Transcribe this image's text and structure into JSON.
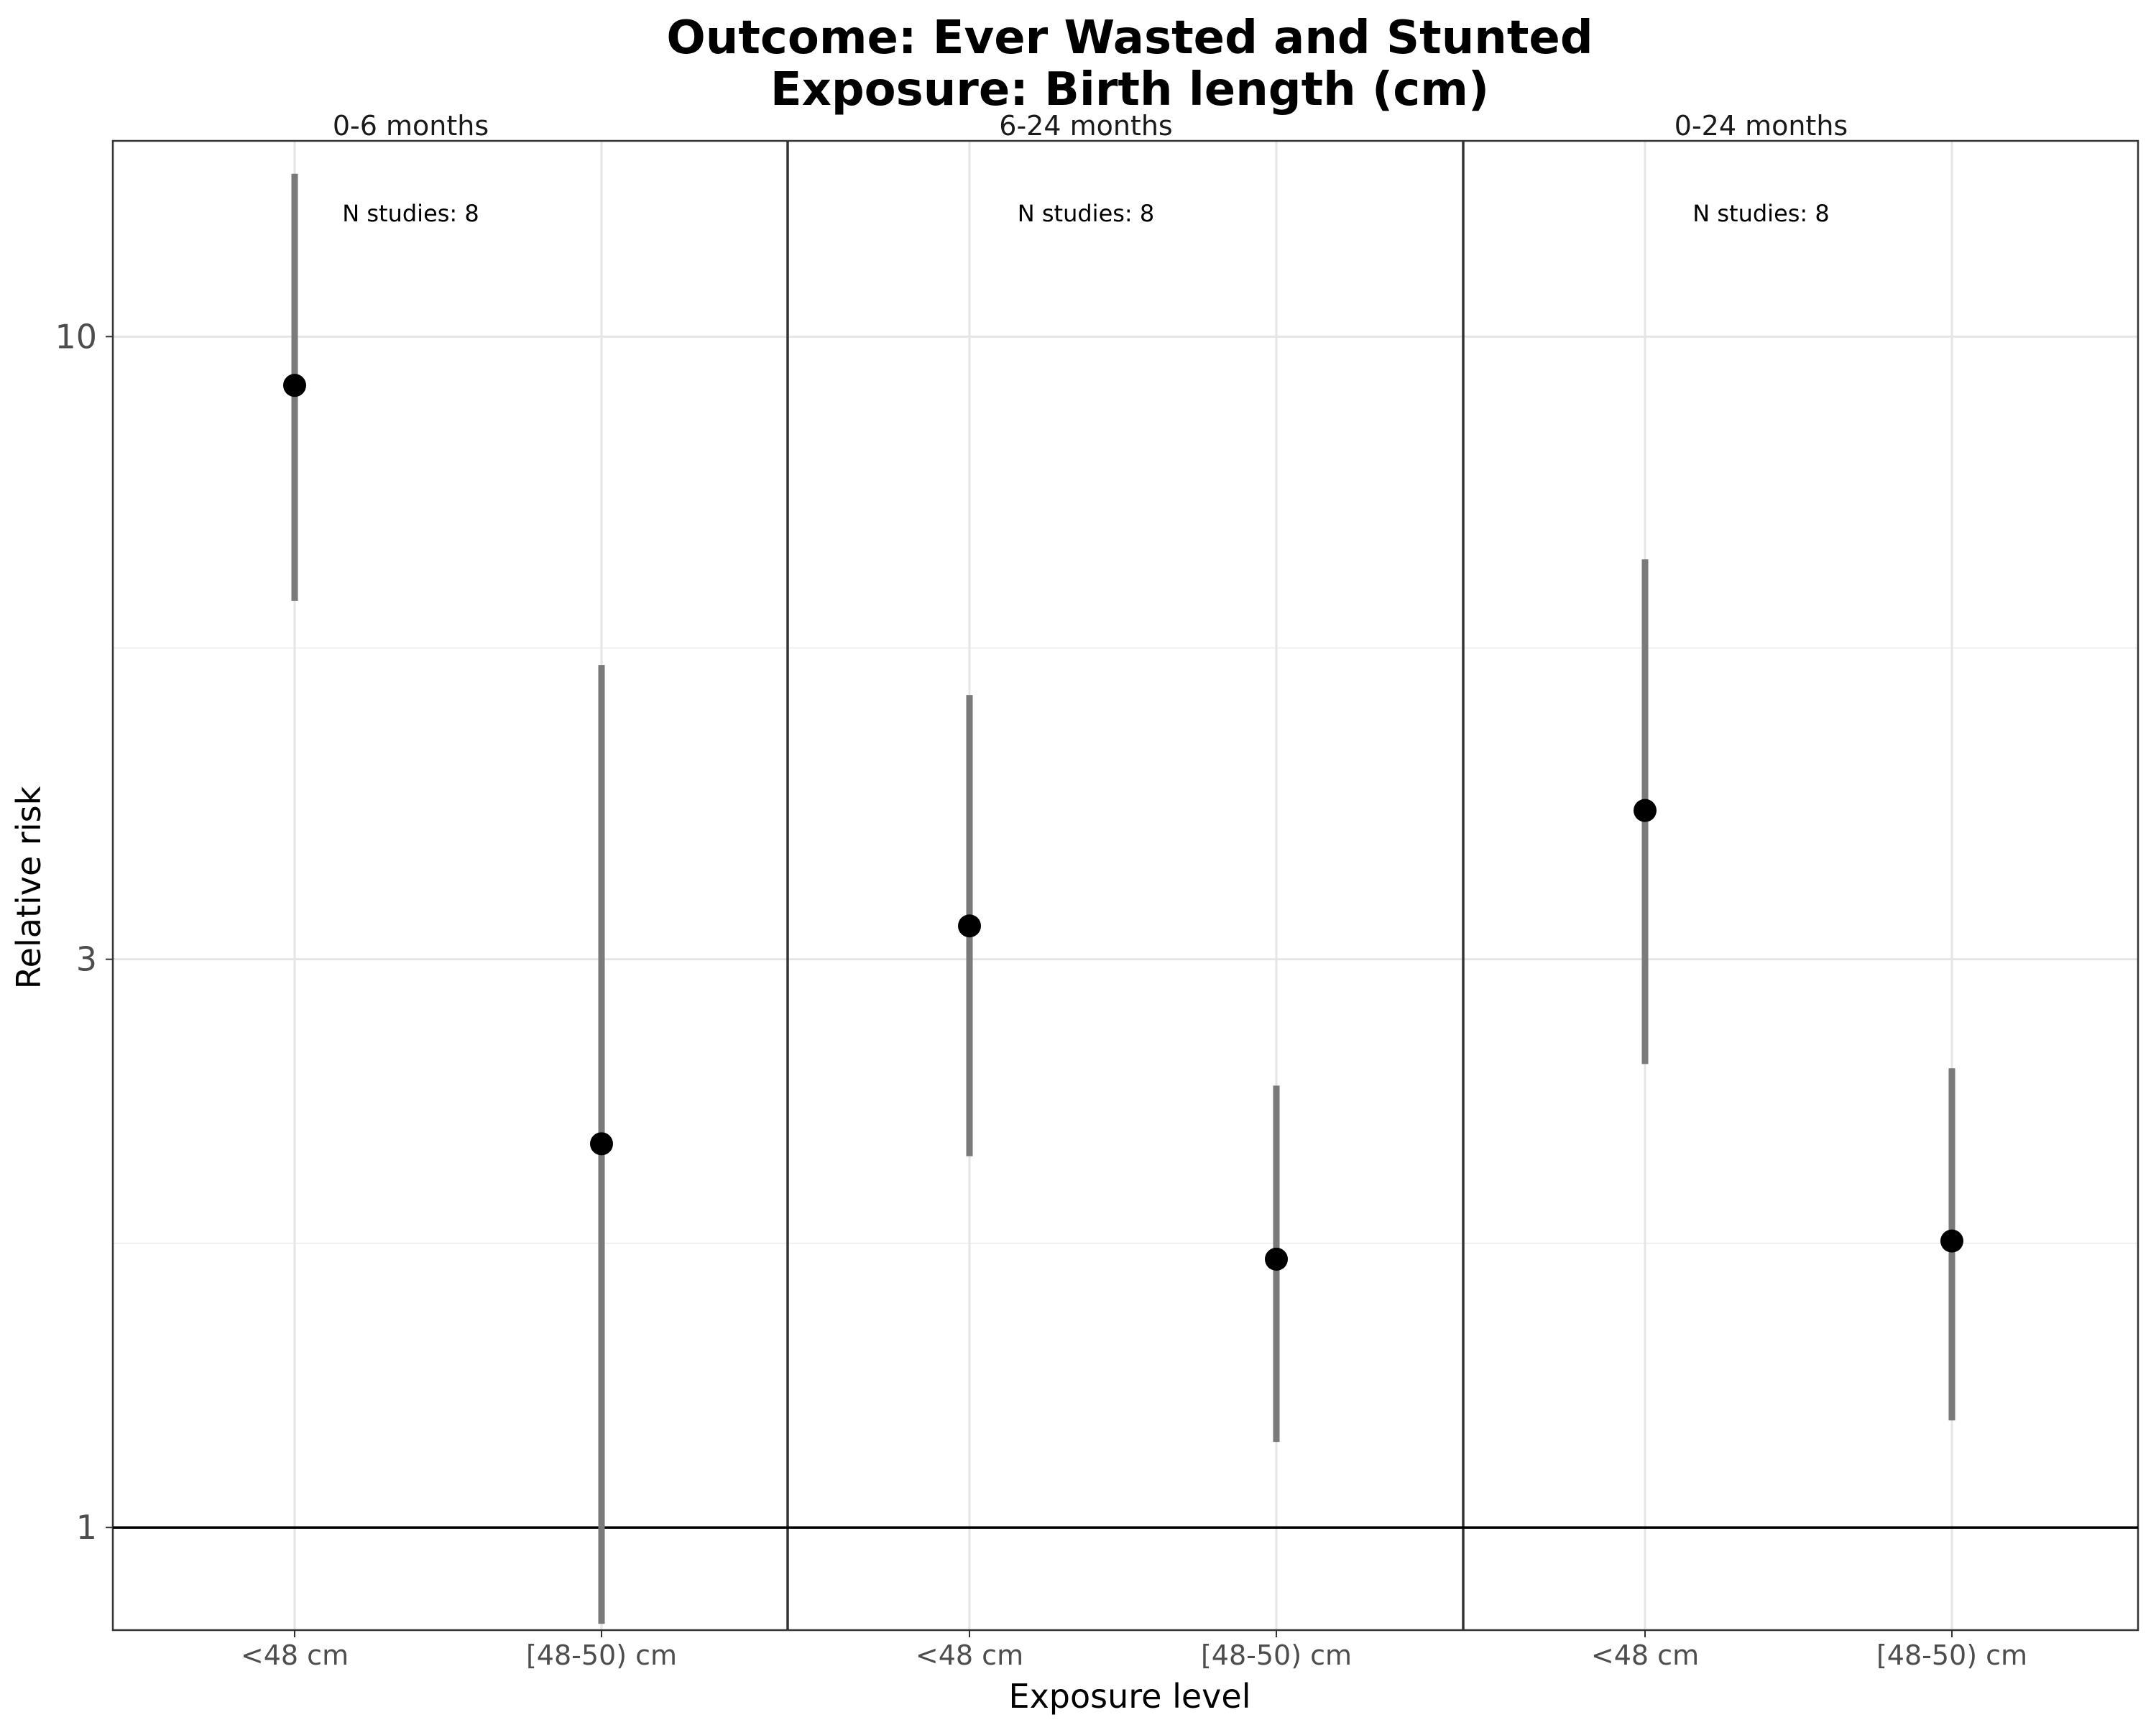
{
  "chart_data": {
    "type": "scatter",
    "title_line1": "Outcome: Ever Wasted and Stunted",
    "title_line2": "Exposure: Birth length (cm)",
    "xlabel": "Exposure level",
    "ylabel": "Relative risk",
    "y_scale": "log",
    "ylim": [
      0.82,
      14.6
    ],
    "y_ticks": [
      1,
      3,
      10
    ],
    "y_tick_labels": [
      "1",
      "3",
      "10"
    ],
    "reference_line": 1,
    "categories": [
      "<48 cm",
      "[48-50) cm"
    ],
    "panels": [
      {
        "label": "0-6 months",
        "n_studies_label": "N studies: 8",
        "points": [
          {
            "category": "<48 cm",
            "estimate": 9.1,
            "lower": 6.0,
            "upper": 13.7
          },
          {
            "category": "[48-50) cm",
            "estimate": 2.1,
            "lower": 0.83,
            "upper": 5.3
          }
        ]
      },
      {
        "label": "6-24 months",
        "n_studies_label": "N studies: 8",
        "points": [
          {
            "category": "<48 cm",
            "estimate": 3.2,
            "lower": 2.05,
            "upper": 5.0
          },
          {
            "category": "[48-50) cm",
            "estimate": 1.68,
            "lower": 1.18,
            "upper": 2.35
          }
        ]
      },
      {
        "label": "0-24 months",
        "n_studies_label": "N studies: 8",
        "points": [
          {
            "category": "<48 cm",
            "estimate": 4.0,
            "lower": 2.45,
            "upper": 6.5
          },
          {
            "category": "[48-50) cm",
            "estimate": 1.74,
            "lower": 1.23,
            "upper": 2.43
          }
        ]
      }
    ],
    "colors": {
      "point": "#000000",
      "ci_line": "#7a7a7a",
      "grid_major": "#e5e5e5",
      "grid_minor": "#f0f0f0",
      "panel_border": "#333333",
      "reference_line": "#000000"
    },
    "grid": true
  }
}
